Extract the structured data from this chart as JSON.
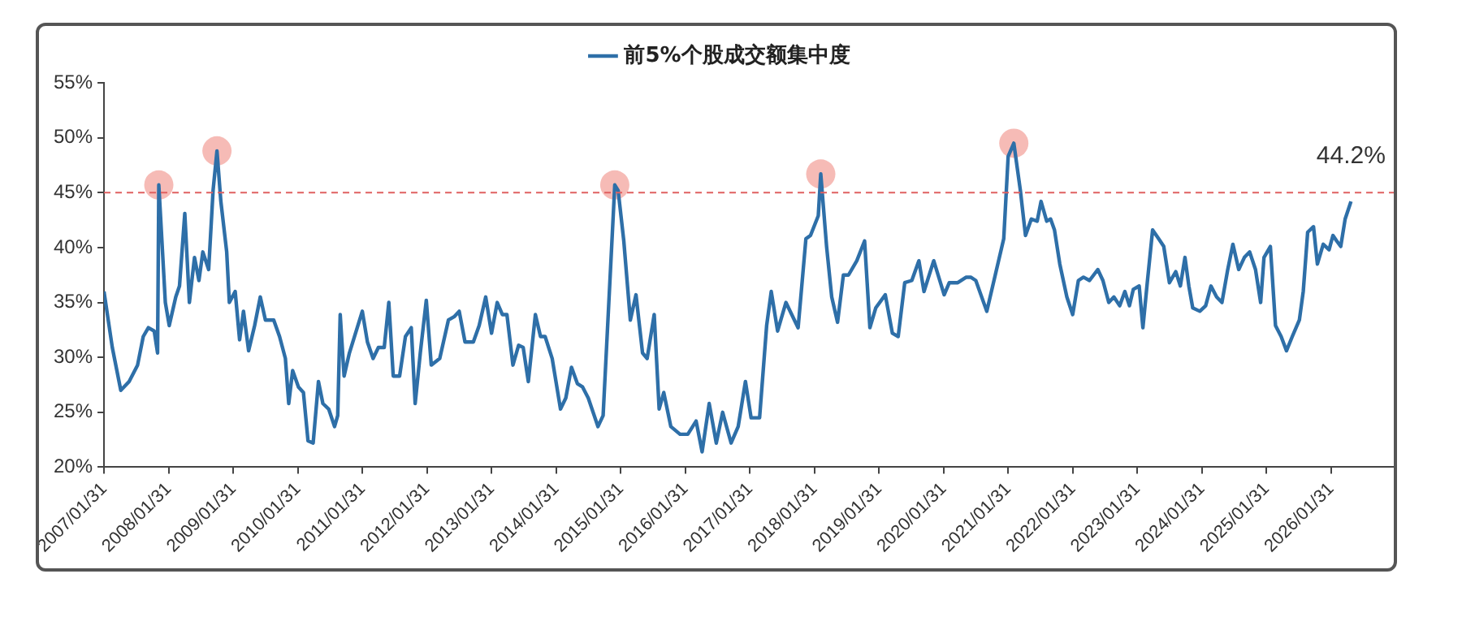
{
  "chart_data": {
    "type": "line",
    "legend": "top",
    "grid": false,
    "marker": "none",
    "line_style": "solid",
    "xlim": [
      "2007-01-30",
      "2027-01-20"
    ],
    "xticks": [
      {
        "value": "2007-01-31",
        "label": "2007/01/31"
      },
      {
        "value": "2008-01-31",
        "label": "2008/01/31"
      },
      {
        "value": "2009-01-31",
        "label": "2009/01/31"
      },
      {
        "value": "2010-01-31",
        "label": "2010/01/31"
      },
      {
        "value": "2011-01-31",
        "label": "2011/01/31"
      },
      {
        "value": "2012-01-31",
        "label": "2012/01/31"
      },
      {
        "value": "2013-01-31",
        "label": "2013/01/31"
      },
      {
        "value": "2014-01-31",
        "label": "2014/01/31"
      },
      {
        "value": "2015-01-31",
        "label": "2015/01/31"
      },
      {
        "value": "2016-01-31",
        "label": "2016/01/31"
      },
      {
        "value": "2017-01-31",
        "label": "2017/01/31"
      },
      {
        "value": "2018-01-31",
        "label": "2018/01/31"
      },
      {
        "value": "2019-01-31",
        "label": "2019/01/31"
      },
      {
        "value": "2020-01-31",
        "label": "2020/01/31"
      },
      {
        "value": "2021-01-31",
        "label": "2021/01/31"
      },
      {
        "value": "2022-01-31",
        "label": "2022/01/31"
      },
      {
        "value": "2023-01-31",
        "label": "2023/01/31"
      },
      {
        "value": "2024-01-31",
        "label": "2024/01/31"
      },
      {
        "value": "2025-01-31",
        "label": "2025/01/31"
      },
      {
        "value": "2026-01-31",
        "label": "2026/01/31"
      }
    ],
    "ylim": [
      20,
      55
    ],
    "yticks": [
      {
        "value": 20,
        "label": "20%"
      },
      {
        "value": 25,
        "label": "25%"
      },
      {
        "value": 30,
        "label": "30%"
      },
      {
        "value": 35,
        "label": "35%"
      },
      {
        "value": 40,
        "label": "40%"
      },
      {
        "value": 45,
        "label": "45%"
      },
      {
        "value": 50,
        "label": "50%"
      },
      {
        "value": 55,
        "label": "55%"
      }
    ],
    "ref_lines": [
      {
        "axis": "y",
        "value": 45,
        "color": "#e06060",
        "line_style": "dashed"
      }
    ],
    "annotations": [
      {
        "text": "44.2%",
        "x": "2026-05-23",
        "y": 44.2
      }
    ],
    "series": [
      {
        "name": "前5%个股成交额集中度",
        "color": "#2e6fa8",
        "x": [
          "2007-01-30",
          "2007-03-18",
          "2007-05-05",
          "2007-06-21",
          "2007-08-08",
          "2007-09-09",
          "2007-10-08",
          "2007-11-10",
          "2007-11-29",
          "2007-12-06",
          "2008-01-12",
          "2008-02-03",
          "2008-03-11",
          "2008-04-01",
          "2008-05-01",
          "2008-05-27",
          "2008-06-25",
          "2008-07-20",
          "2008-08-11",
          "2008-09-13",
          "2008-10-08",
          "2008-10-30",
          "2008-11-21",
          "2008-12-24",
          "2009-01-08",
          "2009-02-10",
          "2009-03-07",
          "2009-03-29",
          "2009-04-27",
          "2009-05-31",
          "2009-07-02",
          "2009-07-31",
          "2009-09-16",
          "2009-10-19",
          "2009-11-21",
          "2009-12-10",
          "2010-01-01",
          "2010-02-03",
          "2010-03-03",
          "2010-03-29",
          "2010-04-27",
          "2010-05-27",
          "2010-06-21",
          "2010-07-24",
          "2010-08-26",
          "2010-09-13",
          "2010-09-27",
          "2010-10-19",
          "2010-11-18",
          "2011-01-30",
          "2011-02-28",
          "2011-04-01",
          "2011-05-01",
          "2011-06-03",
          "2011-06-29",
          "2011-07-24",
          "2011-08-29",
          "2011-10-01",
          "2011-11-03",
          "2011-11-25",
          "2011-12-24",
          "2012-01-27",
          "2012-02-24",
          "2012-04-12",
          "2012-05-31",
          "2012-07-02",
          "2012-07-31",
          "2012-09-02",
          "2012-10-19",
          "2012-11-21",
          "2012-12-28",
          "2013-01-30",
          "2013-03-03",
          "2013-04-01",
          "2013-04-27",
          "2013-05-31",
          "2013-07-02",
          "2013-07-28",
          "2013-08-26",
          "2013-10-05",
          "2013-11-03",
          "2013-11-29",
          "2014-01-08",
          "2014-02-24",
          "2014-03-26",
          "2014-04-27",
          "2014-05-31",
          "2014-06-29",
          "2014-07-31",
          "2014-09-24",
          "2014-10-23",
          "2014-12-28",
          "2015-01-16",
          "2015-02-17",
          "2015-03-26",
          "2015-04-27",
          "2015-06-03",
          "2015-06-29",
          "2015-08-08",
          "2015-09-05",
          "2015-10-01",
          "2015-11-10",
          "2016-01-01",
          "2016-02-14",
          "2016-04-01",
          "2016-05-05",
          "2016-06-14",
          "2016-07-24",
          "2016-08-29",
          "2016-10-16",
          "2016-11-25",
          "2017-01-05",
          "2017-02-06",
          "2017-03-26",
          "2017-05-05",
          "2017-05-31",
          "2017-07-06",
          "2017-08-22",
          "2017-09-24",
          "2017-10-30",
          "2017-12-13",
          "2018-01-08",
          "2018-02-21",
          "2018-03-07",
          "2018-04-09",
          "2018-05-08",
          "2018-06-10",
          "2018-07-13",
          "2018-08-11",
          "2018-09-27",
          "2018-11-10",
          "2018-12-10",
          "2019-01-12",
          "2019-03-07",
          "2019-04-16",
          "2019-05-19",
          "2019-06-25",
          "2019-08-04",
          "2019-09-13",
          "2019-10-12",
          "2019-12-06",
          "2020-02-03",
          "2020-03-03",
          "2020-04-20",
          "2020-06-07",
          "2020-07-02",
          "2020-07-31",
          "2020-10-01",
          "2020-11-18",
          "2021-01-05",
          "2021-01-30",
          "2021-03-03",
          "2021-04-09",
          "2021-05-08",
          "2021-06-10",
          "2021-07-13",
          "2021-08-04",
          "2021-09-05",
          "2021-09-27",
          "2021-10-19",
          "2021-11-18",
          "2021-12-28",
          "2022-01-30",
          "2022-03-03",
          "2022-04-01",
          "2022-05-05",
          "2022-06-21",
          "2022-07-20",
          "2022-08-22",
          "2022-09-20",
          "2022-10-23",
          "2022-11-21",
          "2022-12-17",
          "2023-01-08",
          "2023-02-10",
          "2023-03-03",
          "2023-03-29",
          "2023-04-27",
          "2023-05-31",
          "2023-06-29",
          "2023-07-31",
          "2023-09-05",
          "2023-10-01",
          "2023-10-27",
          "2023-11-18",
          "2023-12-10",
          "2024-01-19",
          "2024-02-21",
          "2024-03-22",
          "2024-04-23",
          "2024-05-23",
          "2024-06-25",
          "2024-07-24",
          "2024-08-26",
          "2024-09-27",
          "2024-10-27",
          "2024-11-29",
          "2024-12-28",
          "2025-01-16",
          "2025-02-21",
          "2025-03-22",
          "2025-04-23",
          "2025-05-23",
          "2025-06-25",
          "2025-08-04",
          "2025-08-26",
          "2025-09-20",
          "2025-10-23",
          "2025-11-14",
          "2025-12-17",
          "2026-01-19",
          "2026-02-10",
          "2026-03-03",
          "2026-03-26",
          "2026-04-20",
          "2026-05-23"
        ],
        "values": [
          36.0,
          30.9,
          27.0,
          27.8,
          29.3,
          31.9,
          32.7,
          32.4,
          30.4,
          45.7,
          35.0,
          32.9,
          35.5,
          36.5,
          43.1,
          35.0,
          39.1,
          37.0,
          39.6,
          38.0,
          45.2,
          48.8,
          44.2,
          39.6,
          35.0,
          36.0,
          31.6,
          34.2,
          30.6,
          32.9,
          35.5,
          33.4,
          33.4,
          31.9,
          29.9,
          25.8,
          28.8,
          27.3,
          26.8,
          22.4,
          22.2,
          27.8,
          25.8,
          25.3,
          23.7,
          24.7,
          33.9,
          28.3,
          30.4,
          34.2,
          31.4,
          29.9,
          30.9,
          30.9,
          35.0,
          28.3,
          28.3,
          31.9,
          32.7,
          25.8,
          30.4,
          35.2,
          29.3,
          29.9,
          33.4,
          33.7,
          34.2,
          31.4,
          31.4,
          32.9,
          35.5,
          32.2,
          35.0,
          33.9,
          33.9,
          29.3,
          31.1,
          30.9,
          27.8,
          33.9,
          31.9,
          31.9,
          29.9,
          25.3,
          26.3,
          29.1,
          27.6,
          27.3,
          26.3,
          23.7,
          24.7,
          45.7,
          45.2,
          40.6,
          33.4,
          35.7,
          30.4,
          29.9,
          33.9,
          25.3,
          26.8,
          23.7,
          23.0,
          23.0,
          24.2,
          21.4,
          25.8,
          22.2,
          25.0,
          22.2,
          23.7,
          27.8,
          24.5,
          24.5,
          32.9,
          36.0,
          32.4,
          35.0,
          33.9,
          32.7,
          40.8,
          41.1,
          42.9,
          46.7,
          40.1,
          35.5,
          33.2,
          37.5,
          37.5,
          38.8,
          40.6,
          32.7,
          34.5,
          35.7,
          32.2,
          31.9,
          36.8,
          37.0,
          38.8,
          36.0,
          38.8,
          35.7,
          36.8,
          36.8,
          37.3,
          37.3,
          37.0,
          34.2,
          37.5,
          40.8,
          48.3,
          49.5,
          45.2,
          41.1,
          42.6,
          42.4,
          44.2,
          42.4,
          42.6,
          41.6,
          38.5,
          35.5,
          33.9,
          37.0,
          37.3,
          37.0,
          38.0,
          37.0,
          35.0,
          35.5,
          34.7,
          36.0,
          34.7,
          36.2,
          36.5,
          32.7,
          37.0,
          41.6,
          40.8,
          40.1,
          36.8,
          37.8,
          36.5,
          39.1,
          36.5,
          34.5,
          34.2,
          34.7,
          36.5,
          35.5,
          35.0,
          38.0,
          40.3,
          38.0,
          39.1,
          39.6,
          38.0,
          35.0,
          39.1,
          40.1,
          32.9,
          31.9,
          30.6,
          31.9,
          33.4,
          36.0,
          41.4,
          41.9,
          38.5,
          40.3,
          39.8,
          41.1,
          40.6,
          40.1,
          42.6,
          44.2
        ]
      },
      {
        "type": "scatter",
        "color": "#f4aaa4",
        "marker": "circle",
        "x": [
          "2007-12-06",
          "2008-10-30",
          "2014-12-28",
          "2018-03-07",
          "2021-03-03"
        ],
        "values": [
          45.7,
          48.8,
          45.7,
          46.7,
          49.5
        ]
      }
    ]
  }
}
